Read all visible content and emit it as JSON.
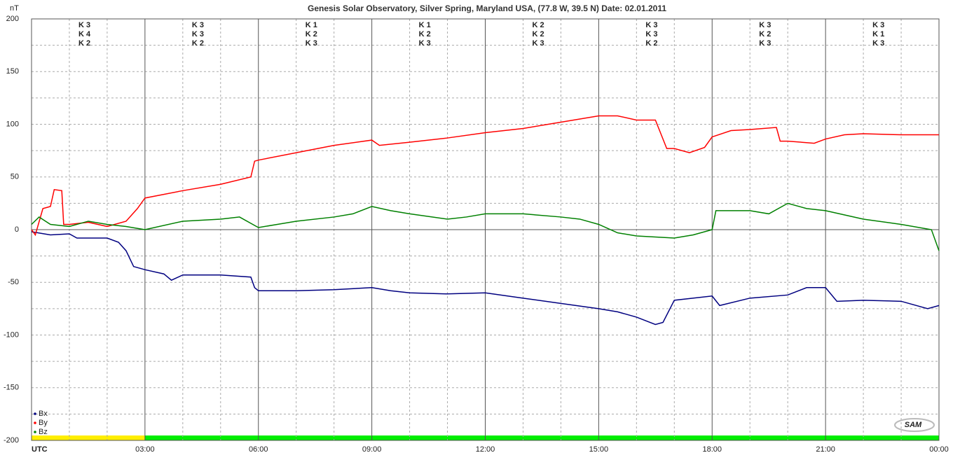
{
  "chart_data": {
    "type": "line",
    "title": "Genesis Solar Observatory, Silver Spring, Maryland USA, (77.8 W, 39.5 N)  Date: 02.01.2011",
    "y_label": "nT",
    "xlim": [
      0,
      24
    ],
    "xticks": [
      {
        "value": 0,
        "label": "UTC"
      },
      {
        "value": 3,
        "label": "03:00"
      },
      {
        "value": 6,
        "label": "06:00"
      },
      {
        "value": 9,
        "label": "09:00"
      },
      {
        "value": 12,
        "label": "12:00"
      },
      {
        "value": 15,
        "label": "15:00"
      },
      {
        "value": 18,
        "label": "18:00"
      },
      {
        "value": 21,
        "label": "21:00"
      },
      {
        "value": 24,
        "label": "00:00"
      }
    ],
    "x_minor_ticks": [
      1,
      2,
      4,
      5,
      7,
      8,
      10,
      11,
      13,
      14,
      16,
      17,
      19,
      20,
      22,
      23
    ],
    "ylim": [
      -200,
      200
    ],
    "yticks": [
      200,
      150,
      100,
      50,
      0,
      -50,
      -100,
      -150,
      -200
    ],
    "y_minor_ticks": [
      175,
      125,
      75,
      25,
      -25,
      -75,
      -125,
      -175
    ],
    "grid": true,
    "legend": "bottom-left",
    "logo": "SAM",
    "status_bar": [
      {
        "from": 0,
        "to": 3,
        "color": "#ffee00"
      },
      {
        "from": 3,
        "to": 24,
        "color": "#00ee00"
      }
    ],
    "series": [
      {
        "name": "Bx",
        "color": "#000080",
        "k_labels": [
          "K 3",
          "K 3",
          "K 1",
          "K 1",
          "K 2",
          "K 3",
          "K 3",
          "K 3"
        ],
        "x": [
          0,
          0.5,
          1,
          1.2,
          2,
          2.3,
          2.5,
          2.7,
          3,
          3.5,
          3.7,
          4,
          5,
          5.8,
          5.9,
          6,
          7,
          8,
          9,
          9.5,
          10,
          11,
          12,
          13,
          14,
          15,
          15.5,
          16,
          16.5,
          16.7,
          17,
          18,
          18.2,
          19,
          20,
          20.5,
          21,
          21.3,
          22,
          23,
          23.7,
          24
        ],
        "values": [
          -2,
          -5,
          -4,
          -8,
          -8,
          -12,
          -20,
          -35,
          -38,
          -42,
          -48,
          -43,
          -43,
          -45,
          -55,
          -58,
          -58,
          -57,
          -55,
          -58,
          -60,
          -61,
          -60,
          -65,
          -70,
          -75,
          -78,
          -83,
          -90,
          -88,
          -67,
          -63,
          -72,
          -65,
          -62,
          -55,
          -55,
          -68,
          -67,
          -68,
          -75,
          -72
        ]
      },
      {
        "name": "By",
        "color": "#ff0000",
        "k_labels": [
          "K 4",
          "K 3",
          "K 2",
          "K 2",
          "K 2",
          "K 3",
          "K 2",
          "K 1"
        ],
        "x": [
          0,
          0.1,
          0.3,
          0.5,
          0.6,
          0.8,
          0.85,
          1,
          1.5,
          2,
          2.5,
          2.8,
          3,
          4,
          5,
          5.8,
          5.9,
          6,
          7,
          8,
          9,
          9.2,
          10,
          11,
          12,
          13,
          14,
          15,
          15.5,
          16,
          16.5,
          16.8,
          17,
          17.4,
          17.8,
          18,
          18.5,
          19,
          19.7,
          19.8,
          20,
          20.7,
          21,
          21.5,
          22,
          23,
          24
        ],
        "values": [
          0,
          -5,
          20,
          22,
          38,
          37,
          5,
          5,
          7,
          3,
          8,
          20,
          30,
          37,
          43,
          50,
          65,
          66,
          73,
          80,
          85,
          80,
          83,
          87,
          92,
          96,
          102,
          108,
          108,
          104,
          104,
          77,
          77,
          73,
          78,
          88,
          94,
          95,
          97,
          84,
          84,
          82,
          86,
          90,
          91,
          90,
          90
        ]
      },
      {
        "name": "Bz",
        "color": "#008000",
        "k_labels": [
          "K 2",
          "K 2",
          "K 3",
          "K 3",
          "K 3",
          "K 2",
          "K 3",
          "K 3"
        ],
        "x": [
          0,
          0.2,
          0.5,
          1,
          1.5,
          2,
          2.5,
          3,
          4,
          5,
          5.5,
          6,
          6.5,
          7,
          8,
          8.5,
          9,
          9.5,
          10,
          11,
          11.5,
          12,
          13,
          14,
          14.5,
          15,
          15.5,
          16,
          17,
          17.5,
          18,
          18.1,
          19,
          19.5,
          20,
          20.5,
          21,
          22,
          23,
          23.8,
          24
        ],
        "values": [
          5,
          12,
          5,
          3,
          8,
          5,
          3,
          0,
          8,
          10,
          12,
          2,
          5,
          8,
          12,
          15,
          22,
          18,
          15,
          10,
          12,
          15,
          15,
          12,
          10,
          5,
          -3,
          -6,
          -8,
          -5,
          0,
          18,
          18,
          15,
          25,
          20,
          18,
          10,
          5,
          0,
          -20
        ]
      }
    ]
  }
}
